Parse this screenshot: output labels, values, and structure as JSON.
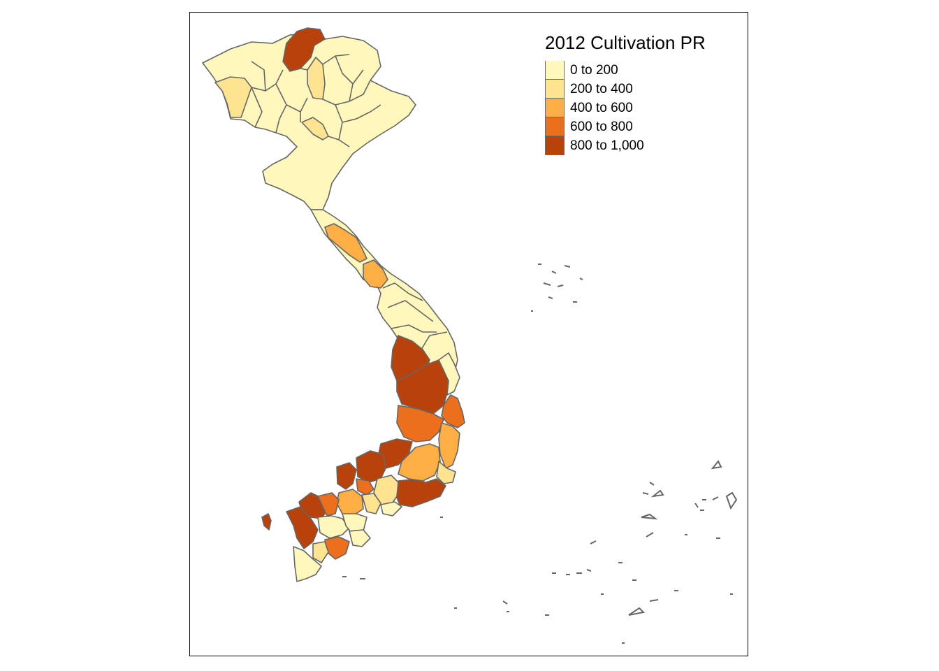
{
  "map": {
    "legend": {
      "title": "2012 Cultivation PR",
      "classes": [
        {
          "label": "0 to 200",
          "color": "#FFF7BC"
        },
        {
          "label": "200 to 400",
          "color": "#FEE391"
        },
        {
          "label": "400 to 600",
          "color": "#FDAE45"
        },
        {
          "label": "600 to 800",
          "color": "#EC6F1E"
        },
        {
          "label": "800 to 1,000",
          "color": "#B8420A"
        }
      ]
    },
    "border_color": "#666666"
  }
}
